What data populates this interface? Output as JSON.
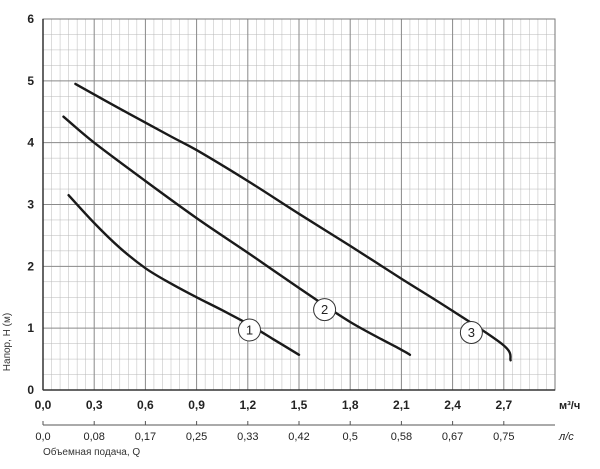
{
  "chart_data": {
    "type": "line",
    "title": "",
    "ylabel": "Напор, H (м)",
    "xlabel": "Объемная подача, Q",
    "x_unit": "м³/ч",
    "x2_unit": "л/с",
    "xlim": [
      0,
      3.0
    ],
    "ylim": [
      0,
      6
    ],
    "grid": true,
    "x_ticks": [
      "0,0",
      "0,3",
      "0,6",
      "0,9",
      "1,2",
      "1,5",
      "1,8",
      "2,1",
      "2,4",
      "2,7"
    ],
    "x2_ticks": [
      "0,0",
      "0,08",
      "0,17",
      "0,25",
      "0,33",
      "0,42",
      "0,5",
      "0,58",
      "0,67",
      "0,75"
    ],
    "y_ticks": [
      "0",
      "1",
      "2",
      "3",
      "4",
      "5",
      "6"
    ],
    "series": [
      {
        "name": "1",
        "label_at": [
          1.21,
          0.97
        ],
        "x": [
          0.15,
          0.3,
          0.45,
          0.6,
          0.75,
          0.9,
          1.05,
          1.2,
          1.35,
          1.5
        ],
        "y": [
          3.15,
          2.7,
          2.3,
          1.97,
          1.72,
          1.5,
          1.29,
          1.07,
          0.82,
          0.57
        ]
      },
      {
        "name": "2",
        "label_at": [
          1.65,
          1.3
        ],
        "x": [
          0.12,
          0.3,
          0.6,
          0.9,
          1.2,
          1.5,
          1.8,
          2.1,
          2.15
        ],
        "y": [
          4.42,
          4.0,
          3.38,
          2.78,
          2.22,
          1.65,
          1.1,
          0.65,
          0.57
        ]
      },
      {
        "name": "3",
        "label_at": [
          2.51,
          0.93
        ],
        "x": [
          0.19,
          0.45,
          0.75,
          0.9,
          1.2,
          1.5,
          1.8,
          2.1,
          2.4,
          2.7,
          2.74
        ],
        "y": [
          4.95,
          4.55,
          4.1,
          3.88,
          3.38,
          2.85,
          2.33,
          1.8,
          1.28,
          0.72,
          0.48
        ]
      }
    ]
  }
}
